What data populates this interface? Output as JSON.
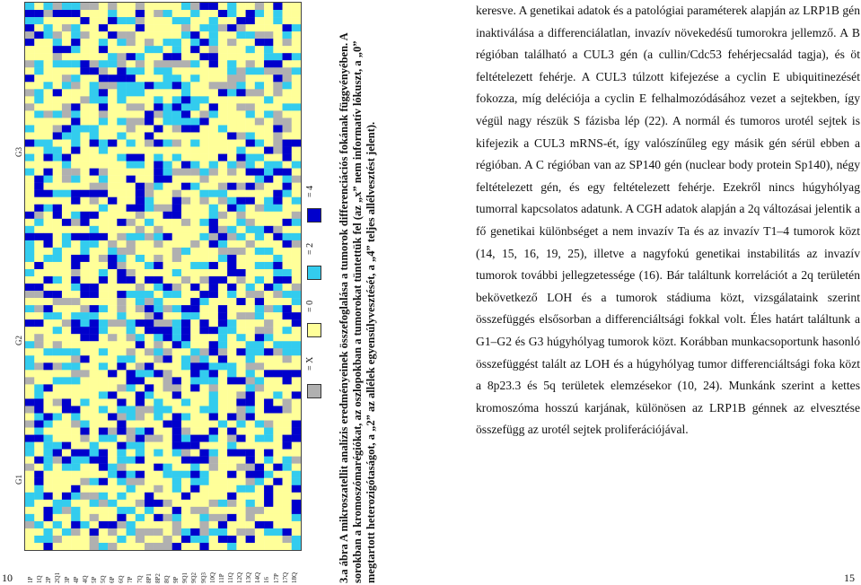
{
  "left_page": {
    "page_number": "10",
    "group_labels": [
      "G1",
      "G2",
      "G3"
    ],
    "row_labels": [
      "1P",
      "1Q",
      "2P",
      "2Q1",
      "3P",
      "4P",
      "4Q",
      "5P",
      "5Q",
      "6P",
      "6Q",
      "7P",
      "7Q",
      "8P1",
      "8P2",
      "8Q",
      "9P",
      "9Q1",
      "9Q2",
      "9Q3",
      "10Q",
      "11P",
      "11Q",
      "12Q",
      "13Q",
      "14Q",
      "16",
      "17P",
      "17Q",
      "18Q"
    ],
    "legend": [
      {
        "label": "= X",
        "color": "#b0b0b0"
      },
      {
        "label": "= 0",
        "color": "#ffff99"
      },
      {
        "label": "= 2",
        "color": "#33ccee"
      },
      {
        "label": "= 4",
        "color": "#0000cc"
      }
    ],
    "caption_bold": "3.a ábra A mikroszatellit analízis eredményeinek összefoglalása a tumorok differenciációs fokának függvényében. A",
    "caption_line2": "sorokban a kromoszómarégiókat, az oszlopokban a tumorokat tüntettük fel (az „x” nem informatív lókuszt, a „0”",
    "caption_line3": "megtartott heterozigótaságot, a „2” az allélek egyensúlyvesztését, a „4” teljes allélvesztést jelent)."
  },
  "right_page": {
    "page_number": "15",
    "paragraph": "keresve. A genetikai adatok és a patológiai paraméterek alapján az LRP1B gén inaktiválása a differenciálatlan, invazív növekedésű tumorokra jellemző. A B régióban található a CUL3 gén (a cullin/Cdc53 fehérjecsalád tagja), és öt feltételezett fehérje. A CUL3 túlzott kifejezése a cyclin E ubiquitinezését fokozza, míg deléciója a cyclin E felhalmozódásához vezet a sejtekben, így végül nagy részük S fázisba lép (22). A normál és tumoros urotél sejtek is kifejezik a CUL3 mRNS-ét, így valószínűleg egy másik gén sérül ebben a régióban. A C régióban van az SP140 gén (nuclear body protein Sp140), négy feltételezett gén, és egy feltételezett fehérje. Ezekről nincs húgyhólyag tumorral kapcsolatos adatunk. A CGH adatok alapján a 2q változásai jelentik a fő genetikai különbséget a nem invazív Ta és az invazív T1–4 tumorok közt (14, 15, 16, 19, 25), illetve a nagyfokú genetikai instabilitás az invazív tumorok további jellegzetessége (16). Bár találtunk korrelációt a 2q területén bekövetkező LOH és a tumorok stádiuma közt, vizsgálataink szerint összefüggés elsősorban a differenciáltsági fokkal volt. Éles határt találtunk a G1–G2 és G3 húgyhólyag tumorok közt. Korábban munkacsoportunk hasonló összefüggést talált az LOH és a húgyhólyag tumor differenciáltsági foka közt a 8p23.3 és 5q területek elemzésekor (10, 24). Munkánk szerint a kettes kromoszóma hosszú karjának, különösen az LRP1B génnek az elvesztése összefügg az urotél sejtek proliferációjával."
  }
}
